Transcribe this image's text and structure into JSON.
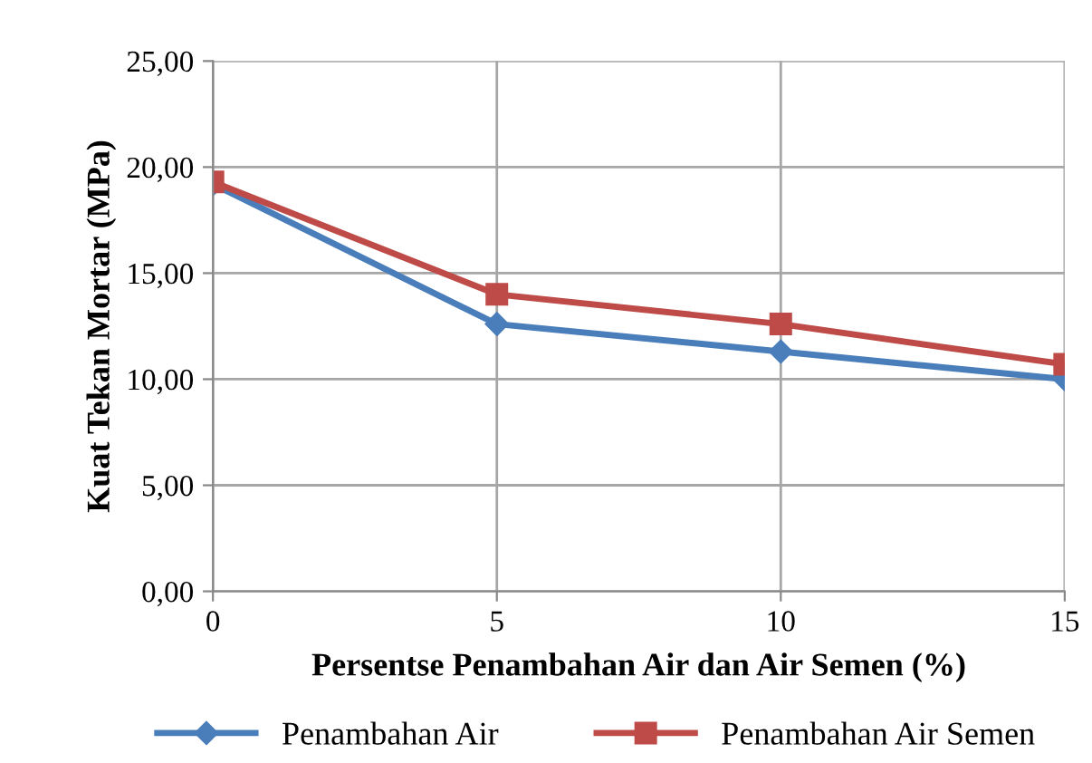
{
  "chart_data": {
    "type": "line",
    "xlabel": "Persentse Penambahan Air dan Air Semen (%)",
    "ylabel": "Kuat Tekan Mortar (MPa)",
    "x": [
      0,
      5,
      10,
      15
    ],
    "series": [
      {
        "name": "Penambahan Air",
        "color": "#4a7ebb",
        "marker": "diamond",
        "values": [
          19.2,
          12.6,
          11.3,
          10.0
        ]
      },
      {
        "name": "Penambahan Air Semen",
        "color": "#be4b48",
        "marker": "square",
        "values": [
          19.3,
          14.0,
          12.6,
          10.7
        ]
      }
    ],
    "xlim": [
      0,
      15
    ],
    "xticks": [
      0,
      5,
      10,
      15
    ],
    "ylim": [
      0,
      25
    ],
    "yticks": [
      {
        "value": 0,
        "label": "0,00"
      },
      {
        "value": 5,
        "label": "5,00"
      },
      {
        "value": 10,
        "label": "10,00"
      },
      {
        "value": 15,
        "label": "15,00"
      },
      {
        "value": 20,
        "label": "20,00"
      },
      {
        "value": 25,
        "label": "25,00"
      }
    ],
    "grid": true,
    "legend": "bottom",
    "line_style": "solid"
  }
}
